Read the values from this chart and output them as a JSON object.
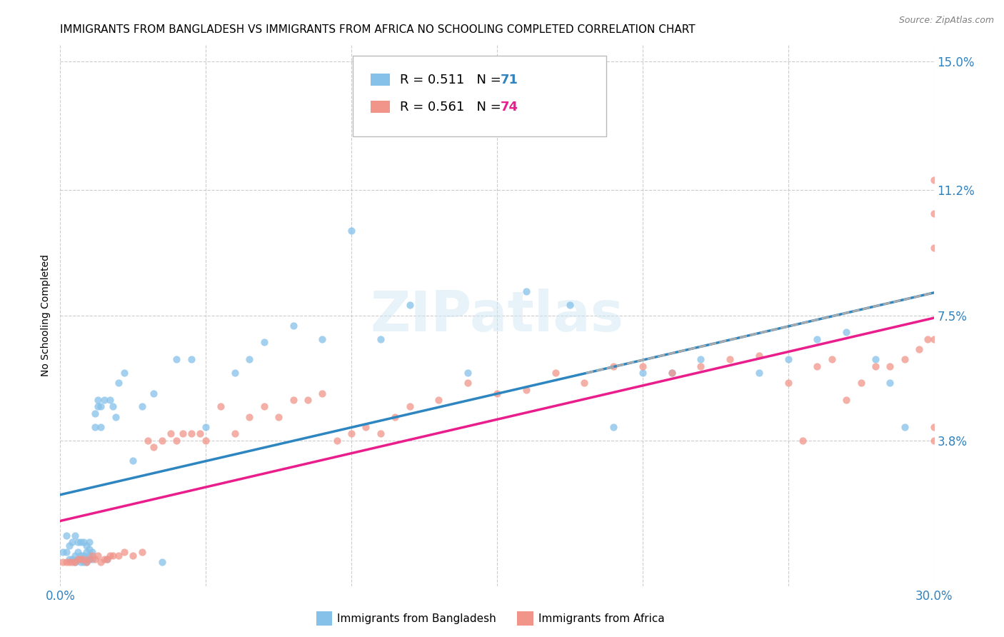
{
  "title": "IMMIGRANTS FROM BANGLADESH VS IMMIGRANTS FROM AFRICA NO SCHOOLING COMPLETED CORRELATION CHART",
  "source": "Source: ZipAtlas.com",
  "ylabel": "No Schooling Completed",
  "legend_label1": "Immigrants from Bangladesh",
  "legend_label2": "Immigrants from Africa",
  "R1": 0.511,
  "N1": 71,
  "R2": 0.561,
  "N2": 74,
  "color1": "#85c1e9",
  "color2": "#f1948a",
  "line_color1": "#2e86c1",
  "line_color2": "#e91e8c",
  "dash_color": "#aaaaaa",
  "xlim": [
    0.0,
    0.3
  ],
  "ylim": [
    -0.005,
    0.155
  ],
  "xticks": [
    0.0,
    0.05,
    0.1,
    0.15,
    0.2,
    0.25,
    0.3
  ],
  "xtick_labels": [
    "0.0%",
    "",
    "",
    "",
    "",
    "",
    "30.0%"
  ],
  "ytick_vals": [
    0.038,
    0.075,
    0.112,
    0.15
  ],
  "ytick_labels": [
    "3.8%",
    "7.5%",
    "11.2%",
    "15.0%"
  ],
  "watermark": "ZIPatlas",
  "background_color": "#ffffff",
  "grid_color": "#cccccc",
  "title_fontsize": 11,
  "source_fontsize": 9,
  "ylabel_fontsize": 10,
  "tick_fontsize": 12,
  "legend_fontsize": 13,
  "scatter1_x": [
    0.001,
    0.002,
    0.002,
    0.003,
    0.003,
    0.004,
    0.004,
    0.005,
    0.005,
    0.005,
    0.006,
    0.006,
    0.006,
    0.007,
    0.007,
    0.007,
    0.008,
    0.008,
    0.008,
    0.009,
    0.009,
    0.009,
    0.009,
    0.01,
    0.01,
    0.01,
    0.01,
    0.011,
    0.011,
    0.012,
    0.012,
    0.013,
    0.013,
    0.014,
    0.014,
    0.015,
    0.016,
    0.017,
    0.018,
    0.019,
    0.02,
    0.022,
    0.025,
    0.028,
    0.032,
    0.035,
    0.04,
    0.045,
    0.05,
    0.06,
    0.065,
    0.07,
    0.08,
    0.09,
    0.1,
    0.11,
    0.12,
    0.14,
    0.16,
    0.175,
    0.19,
    0.2,
    0.21,
    0.22,
    0.24,
    0.25,
    0.26,
    0.27,
    0.28,
    0.285,
    0.29
  ],
  "scatter1_y": [
    0.005,
    0.005,
    0.01,
    0.003,
    0.007,
    0.003,
    0.008,
    0.002,
    0.004,
    0.01,
    0.003,
    0.005,
    0.008,
    0.002,
    0.004,
    0.008,
    0.002,
    0.004,
    0.008,
    0.002,
    0.003,
    0.005,
    0.007,
    0.003,
    0.004,
    0.006,
    0.008,
    0.003,
    0.005,
    0.042,
    0.046,
    0.048,
    0.05,
    0.042,
    0.048,
    0.05,
    0.003,
    0.05,
    0.048,
    0.045,
    0.055,
    0.058,
    0.032,
    0.048,
    0.052,
    0.002,
    0.062,
    0.062,
    0.042,
    0.058,
    0.062,
    0.067,
    0.072,
    0.068,
    0.1,
    0.068,
    0.078,
    0.058,
    0.082,
    0.078,
    0.042,
    0.058,
    0.058,
    0.062,
    0.058,
    0.062,
    0.068,
    0.07,
    0.062,
    0.055,
    0.042
  ],
  "scatter2_x": [
    0.001,
    0.002,
    0.003,
    0.004,
    0.005,
    0.006,
    0.007,
    0.008,
    0.009,
    0.01,
    0.011,
    0.012,
    0.013,
    0.014,
    0.015,
    0.016,
    0.017,
    0.018,
    0.02,
    0.022,
    0.025,
    0.028,
    0.03,
    0.032,
    0.035,
    0.038,
    0.04,
    0.042,
    0.045,
    0.048,
    0.05,
    0.055,
    0.06,
    0.065,
    0.07,
    0.075,
    0.08,
    0.085,
    0.09,
    0.095,
    0.1,
    0.105,
    0.11,
    0.115,
    0.12,
    0.13,
    0.14,
    0.15,
    0.16,
    0.17,
    0.18,
    0.19,
    0.2,
    0.21,
    0.22,
    0.23,
    0.24,
    0.25,
    0.255,
    0.26,
    0.265,
    0.27,
    0.275,
    0.28,
    0.285,
    0.29,
    0.295,
    0.298,
    0.3,
    0.3,
    0.3,
    0.3,
    0.3,
    0.3
  ],
  "scatter2_y": [
    0.002,
    0.002,
    0.002,
    0.002,
    0.002,
    0.003,
    0.003,
    0.003,
    0.002,
    0.003,
    0.004,
    0.003,
    0.004,
    0.002,
    0.003,
    0.003,
    0.004,
    0.004,
    0.004,
    0.005,
    0.004,
    0.005,
    0.038,
    0.036,
    0.038,
    0.04,
    0.038,
    0.04,
    0.04,
    0.04,
    0.038,
    0.048,
    0.04,
    0.045,
    0.048,
    0.045,
    0.05,
    0.05,
    0.052,
    0.038,
    0.04,
    0.042,
    0.04,
    0.045,
    0.048,
    0.05,
    0.055,
    0.052,
    0.053,
    0.058,
    0.055,
    0.06,
    0.06,
    0.058,
    0.06,
    0.062,
    0.063,
    0.055,
    0.038,
    0.06,
    0.062,
    0.05,
    0.055,
    0.06,
    0.06,
    0.062,
    0.065,
    0.068,
    0.038,
    0.115,
    0.105,
    0.095,
    0.068,
    0.042
  ]
}
